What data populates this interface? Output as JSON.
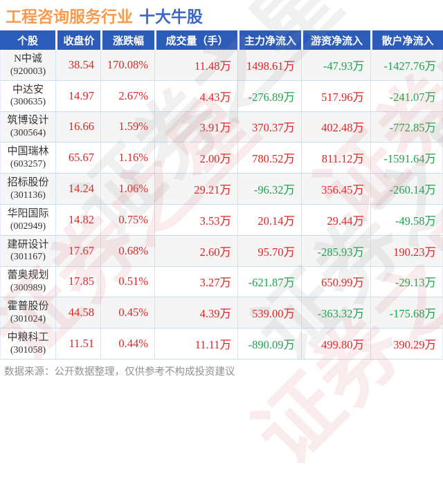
{
  "title": {
    "industry": "工程咨询服务行业",
    "suffix": "十大牛股"
  },
  "watermark": {
    "text": "证券之星"
  },
  "table": {
    "headers": [
      "个股",
      "收盘价",
      "涨跌幅",
      "成交量（手）",
      "主力净流入",
      "游资净流入",
      "散户净流入"
    ],
    "rows": [
      {
        "name": "N中诚",
        "code": "(920003)",
        "close": "38.54",
        "change": "170.08%",
        "volume": "11.48万",
        "main": "1498.61万",
        "hot": "-47.93万",
        "retail": "-1427.76万"
      },
      {
        "name": "中达安",
        "code": "(300635)",
        "close": "14.97",
        "change": "2.67%",
        "volume": "4.43万",
        "main": "-276.89万",
        "hot": "517.96万",
        "retail": "-241.07万"
      },
      {
        "name": "筑博设计",
        "code": "(300564)",
        "close": "16.66",
        "change": "1.59%",
        "volume": "3.91万",
        "main": "370.37万",
        "hot": "402.48万",
        "retail": "-772.85万"
      },
      {
        "name": "中国瑞林",
        "code": "(603257)",
        "close": "65.67",
        "change": "1.16%",
        "volume": "2.00万",
        "main": "780.52万",
        "hot": "811.12万",
        "retail": "-1591.64万"
      },
      {
        "name": "招标股份",
        "code": "(301136)",
        "close": "14.24",
        "change": "1.06%",
        "volume": "29.21万",
        "main": "-96.32万",
        "hot": "356.45万",
        "retail": "-260.14万"
      },
      {
        "name": "华阳国际",
        "code": "(002949)",
        "close": "14.82",
        "change": "0.75%",
        "volume": "3.53万",
        "main": "20.14万",
        "hot": "29.44万",
        "retail": "-49.58万"
      },
      {
        "name": "建研设计",
        "code": "(301167)",
        "close": "17.67",
        "change": "0.68%",
        "volume": "2.60万",
        "main": "95.70万",
        "hot": "-285.93万",
        "retail": "190.23万"
      },
      {
        "name": "蕾奥规划",
        "code": "(300989)",
        "close": "17.85",
        "change": "0.51%",
        "volume": "3.27万",
        "main": "-621.87万",
        "hot": "650.99万",
        "retail": "-29.13万"
      },
      {
        "name": "霍普股份",
        "code": "(301024)",
        "close": "44.58",
        "change": "0.45%",
        "volume": "4.39万",
        "main": "539.00万",
        "hot": "-363.32万",
        "retail": "-175.68万"
      },
      {
        "name": "中粮科工",
        "code": "(301058)",
        "close": "11.51",
        "change": "0.44%",
        "volume": "11.11万",
        "main": "-890.09万",
        "hot": "499.80万",
        "retail": "390.29万"
      }
    ]
  },
  "footer": {
    "note": "数据来源：公开数据整理，仅供参考不构成投资建议"
  },
  "colors": {
    "title_orange": "#FA9A4E",
    "title_blue": "#3A67C8",
    "header_bg": "#2C5BB9",
    "up_red": "#E52222",
    "down_green": "#1DA34E",
    "row_alt_bg": "#f5f5f5",
    "grid_line": "#c9dcf2"
  }
}
